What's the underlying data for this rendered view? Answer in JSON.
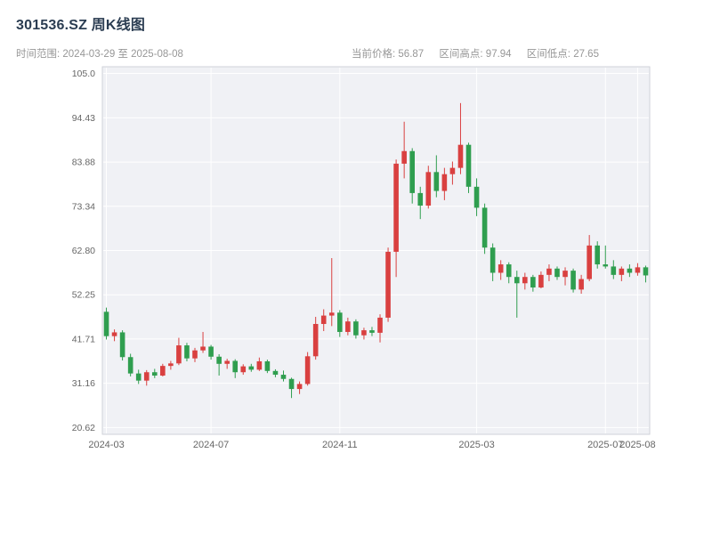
{
  "header": {
    "title": "301536.SZ 周K线图",
    "subtitle_left": "时间范围: 2024-03-29 至 2025-08-08",
    "stats": {
      "current_label": "当前价格:",
      "current_value": "56.87",
      "high_label": "区间高点:",
      "high_value": "97.94",
      "low_label": "区间低点:",
      "low_value": "27.65"
    }
  },
  "chart_data": {
    "type": "candlestick",
    "symbol": "301536.SZ",
    "period": "weekly",
    "title": "301536.SZ 周K线图",
    "date_range": [
      "2024-03-29",
      "2025-08-08"
    ],
    "current_price": 56.87,
    "range_high": 97.94,
    "range_low": 27.65,
    "y_range": [
      19.0,
      106.6
    ],
    "y_ticks": [
      {
        "v": 105.0,
        "label": "105.0"
      },
      {
        "v": 94.43,
        "label": "94.43"
      },
      {
        "v": 83.88,
        "label": "83.88"
      },
      {
        "v": 73.34,
        "label": "73.34"
      },
      {
        "v": 62.8,
        "label": "62.80"
      },
      {
        "v": 52.25,
        "label": "52.25"
      },
      {
        "v": 41.71,
        "label": "41.71"
      },
      {
        "v": 31.16,
        "label": "31.16"
      },
      {
        "v": 20.62,
        "label": "20.62"
      }
    ],
    "x_ticks": [
      {
        "label": "2024-03",
        "index": 0
      },
      {
        "label": "2024-07",
        "index": 13
      },
      {
        "label": "2024-11",
        "index": 29
      },
      {
        "label": "2025-03",
        "index": 46
      },
      {
        "label": "2025-07",
        "index": 62
      },
      {
        "label": "2025-08",
        "index": 66
      }
    ],
    "colors": {
      "up": "#d94040",
      "down": "#2f9e4f",
      "plot_bg": "#f0f1f5",
      "grid": "#ffffff",
      "axis_text": "#666666",
      "border": "#cfd2d9",
      "title": "#2b3d52",
      "subtitle": "#979797"
    },
    "candles": [
      [
        "2024-03-29",
        48.2,
        49.2,
        41.6,
        42.4
      ],
      [
        "2024-04-03",
        42.4,
        44.0,
        41.2,
        43.3
      ],
      [
        "2024-04-12",
        43.3,
        43.8,
        36.6,
        37.4
      ],
      [
        "2024-04-19",
        37.4,
        38.2,
        32.8,
        33.5
      ],
      [
        "2024-04-26",
        33.5,
        34.4,
        31.0,
        31.8
      ],
      [
        "2024-05-10",
        31.8,
        34.3,
        30.6,
        33.8
      ],
      [
        "2024-05-17",
        33.8,
        34.6,
        32.4,
        33.0
      ],
      [
        "2024-05-24",
        33.0,
        35.8,
        32.8,
        35.3
      ],
      [
        "2024-05-31",
        35.3,
        36.5,
        34.4,
        35.9
      ],
      [
        "2024-06-07",
        35.9,
        42.0,
        35.5,
        40.2
      ],
      [
        "2024-06-14",
        40.2,
        40.8,
        36.4,
        37.1
      ],
      [
        "2024-06-21",
        37.1,
        39.6,
        36.2,
        39.0
      ],
      [
        "2024-06-28",
        39.0,
        43.4,
        38.4,
        39.9
      ],
      [
        "2024-07-05",
        39.9,
        40.3,
        36.8,
        37.5
      ],
      [
        "2024-07-12",
        37.5,
        38.1,
        33.0,
        35.8
      ],
      [
        "2024-07-19",
        35.8,
        37.0,
        34.6,
        36.5
      ],
      [
        "2024-07-26",
        36.5,
        36.9,
        32.4,
        33.8
      ],
      [
        "2024-08-02",
        33.8,
        35.7,
        33.2,
        35.2
      ],
      [
        "2024-08-09",
        35.2,
        35.8,
        33.9,
        34.4
      ],
      [
        "2024-08-16",
        34.4,
        37.3,
        34.1,
        36.4
      ],
      [
        "2024-08-23",
        36.4,
        36.8,
        33.6,
        34.1
      ],
      [
        "2024-08-30",
        34.1,
        34.5,
        32.6,
        33.2
      ],
      [
        "2024-09-06",
        33.2,
        34.2,
        31.6,
        32.2
      ],
      [
        "2024-09-13",
        32.2,
        32.5,
        27.65,
        29.8
      ],
      [
        "2024-09-20",
        29.8,
        31.6,
        28.6,
        31.0
      ],
      [
        "2024-09-27",
        31.0,
        38.6,
        30.6,
        37.6
      ],
      [
        "2024-10-11",
        37.6,
        47.0,
        36.8,
        45.3
      ],
      [
        "2024-10-18",
        45.3,
        48.8,
        43.6,
        47.3
      ],
      [
        "2024-10-25",
        47.3,
        61.0,
        44.8,
        48.0
      ],
      [
        "2024-11-01",
        48.0,
        48.6,
        42.2,
        43.4
      ],
      [
        "2024-11-08",
        43.4,
        46.8,
        42.6,
        45.9
      ],
      [
        "2024-11-15",
        45.9,
        46.4,
        41.8,
        42.6
      ],
      [
        "2024-11-22",
        42.6,
        44.4,
        41.6,
        43.8
      ],
      [
        "2024-11-29",
        43.8,
        44.6,
        42.4,
        43.2
      ],
      [
        "2024-12-06",
        43.2,
        47.6,
        40.9,
        46.8
      ],
      [
        "2024-12-13",
        46.8,
        63.5,
        45.8,
        62.5
      ],
      [
        "2024-12-20",
        62.5,
        84.5,
        56.5,
        83.5
      ],
      [
        "2024-12-27",
        83.5,
        93.5,
        80.0,
        86.5
      ],
      [
        "2025-01-03",
        86.5,
        87.2,
        74.0,
        76.5
      ],
      [
        "2025-01-10",
        76.5,
        78.0,
        70.3,
        73.5
      ],
      [
        "2025-01-17",
        73.5,
        83.0,
        72.8,
        81.5
      ],
      [
        "2025-01-24",
        81.5,
        85.5,
        75.5,
        77.0
      ],
      [
        "2025-02-07",
        77.0,
        82.5,
        74.8,
        81.0
      ],
      [
        "2025-02-14",
        81.0,
        84.0,
        78.5,
        82.5
      ],
      [
        "2025-02-21",
        82.5,
        97.94,
        81.0,
        88.0
      ],
      [
        "2025-02-28",
        88.0,
        88.5,
        76.5,
        78.0
      ],
      [
        "2025-03-07",
        78.0,
        80.0,
        71.0,
        73.0
      ],
      [
        "2025-03-14",
        73.0,
        74.0,
        62.0,
        63.5
      ],
      [
        "2025-03-21",
        63.5,
        64.5,
        55.5,
        57.5
      ],
      [
        "2025-03-28",
        57.5,
        60.5,
        55.8,
        59.5
      ],
      [
        "2025-04-03",
        59.5,
        60.0,
        55.0,
        56.5
      ],
      [
        "2025-04-11",
        56.5,
        58.0,
        46.8,
        55.0
      ],
      [
        "2025-04-18",
        55.0,
        57.5,
        53.5,
        56.5
      ],
      [
        "2025-04-25",
        56.5,
        57.0,
        53.0,
        54.0
      ],
      [
        "2025-05-09",
        54.0,
        57.8,
        53.8,
        57.0
      ],
      [
        "2025-05-16",
        57.0,
        59.5,
        55.5,
        58.5
      ],
      [
        "2025-05-23",
        58.5,
        59.0,
        55.8,
        56.5
      ],
      [
        "2025-05-30",
        56.5,
        58.8,
        54.5,
        58.0
      ],
      [
        "2025-06-06",
        58.0,
        58.5,
        52.8,
        53.5
      ],
      [
        "2025-06-13",
        53.5,
        57.0,
        52.5,
        56.0
      ],
      [
        "2025-06-20",
        56.0,
        66.5,
        55.5,
        64.0
      ],
      [
        "2025-06-27",
        64.0,
        65.0,
        58.5,
        59.5
      ],
      [
        "2025-07-04",
        59.5,
        64.0,
        58.5,
        59.0
      ],
      [
        "2025-07-11",
        59.0,
        60.5,
        56.0,
        57.0
      ],
      [
        "2025-07-18",
        57.0,
        59.0,
        55.5,
        58.5
      ],
      [
        "2025-07-25",
        58.5,
        59.5,
        56.5,
        57.5
      ],
      [
        "2025-08-01",
        57.5,
        59.8,
        56.8,
        58.8
      ],
      [
        "2025-08-08",
        58.8,
        59.2,
        55.2,
        56.87
      ]
    ]
  }
}
